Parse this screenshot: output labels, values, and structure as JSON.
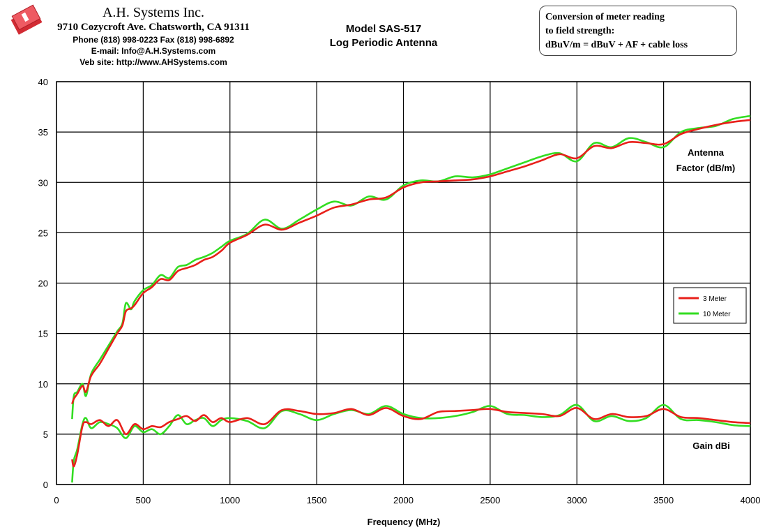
{
  "header": {
    "company_name": "A.H. Systems Inc.",
    "address": "9710 Cozycroft Ave. Chatsworth, CA 91311",
    "phone": "Phone (818) 998-0223 Fax (818) 998-6892",
    "email": "E-mail:  Info@A.H.Systems.com",
    "website": "Veb site:  http://www.AHSystems.com",
    "model_line1": "Model SAS-517",
    "model_line2": "Log Periodic Antenna"
  },
  "conversion_box": {
    "line1": "Conversion of meter reading",
    "line2": "to field strength:",
    "line3": "dBuV/m = dBuV + AF + cable loss"
  },
  "colors": {
    "three_meter": "#e8201a",
    "ten_meter": "#33dd22",
    "grid": "#000000",
    "logo": "#e8323c"
  },
  "chart_data": {
    "type": "line",
    "title": "",
    "xlabel": "Frequency (MHz)",
    "ylabel": "",
    "xlim": [
      0,
      4000
    ],
    "ylim": [
      0,
      40
    ],
    "x_ticks": [
      "0",
      "500",
      "1000",
      "1500",
      "2000",
      "2500",
      "3000",
      "3500",
      "4000"
    ],
    "y_ticks": [
      "0",
      "5",
      "10",
      "15",
      "20",
      "25",
      "30",
      "35",
      "40"
    ],
    "grid": true,
    "legend_position": "right",
    "legend": [
      "3 Meter",
      "10 Meter"
    ],
    "annotations": [
      "Antenna",
      "Factor (dB/m)",
      "Gain dBi"
    ],
    "series": [
      {
        "name": "3 Meter",
        "group": "Antenna Factor",
        "x": [
          90,
          100,
          120,
          150,
          170,
          200,
          250,
          300,
          350,
          380,
          400,
          430,
          450,
          500,
          550,
          600,
          650,
          700,
          750,
          800,
          850,
          900,
          950,
          1000,
          1100,
          1200,
          1300,
          1400,
          1500,
          1600,
          1700,
          1800,
          1900,
          2000,
          2100,
          2200,
          2300,
          2400,
          2500,
          2600,
          2700,
          2800,
          2900,
          3000,
          3100,
          3200,
          3300,
          3400,
          3500,
          3600,
          3700,
          3800,
          3900,
          4000
        ],
        "values": [
          8.0,
          8.5,
          9.0,
          9.8,
          9.2,
          10.8,
          12.0,
          13.5,
          15.0,
          15.8,
          17.2,
          17.5,
          17.8,
          19.0,
          19.6,
          20.4,
          20.3,
          21.2,
          21.5,
          21.8,
          22.3,
          22.6,
          23.2,
          24.0,
          24.8,
          25.8,
          25.3,
          26.0,
          26.7,
          27.5,
          27.8,
          28.3,
          28.5,
          29.5,
          30.0,
          30.1,
          30.2,
          30.3,
          30.6,
          31.1,
          31.6,
          32.2,
          32.8,
          32.4,
          33.6,
          33.4,
          34.0,
          33.9,
          33.8,
          34.8,
          35.3,
          35.7,
          36.0,
          36.2
        ]
      },
      {
        "name": "10 Meter",
        "group": "Antenna Factor",
        "x": [
          90,
          100,
          120,
          150,
          170,
          200,
          250,
          300,
          350,
          380,
          400,
          430,
          450,
          500,
          550,
          600,
          650,
          700,
          750,
          800,
          850,
          900,
          950,
          1000,
          1100,
          1200,
          1300,
          1400,
          1500,
          1600,
          1700,
          1800,
          1900,
          2000,
          2100,
          2200,
          2300,
          2400,
          2500,
          2600,
          2700,
          2800,
          2900,
          3000,
          3100,
          3200,
          3300,
          3400,
          3500,
          3600,
          3700,
          3800,
          3900,
          4000
        ],
        "values": [
          6.5,
          8.8,
          9.2,
          10.0,
          8.8,
          11.0,
          12.4,
          13.8,
          15.2,
          16.0,
          18.0,
          17.4,
          18.2,
          19.3,
          19.8,
          20.8,
          20.5,
          21.6,
          21.8,
          22.3,
          22.6,
          23.0,
          23.6,
          24.2,
          24.9,
          26.3,
          25.4,
          26.3,
          27.3,
          28.1,
          27.7,
          28.6,
          28.3,
          29.7,
          30.2,
          30.1,
          30.6,
          30.5,
          30.8,
          31.4,
          32.0,
          32.6,
          32.9,
          32.1,
          33.9,
          33.5,
          34.4,
          34.0,
          33.5,
          35.0,
          35.4,
          35.6,
          36.3,
          36.6
        ]
      },
      {
        "name": "3 Meter",
        "group": "Gain dBi",
        "x": [
          90,
          100,
          120,
          150,
          170,
          200,
          250,
          300,
          350,
          400,
          450,
          500,
          550,
          600,
          650,
          700,
          750,
          800,
          850,
          900,
          950,
          1000,
          1100,
          1200,
          1300,
          1400,
          1500,
          1600,
          1700,
          1800,
          1900,
          2000,
          2100,
          2200,
          2300,
          2400,
          2500,
          2600,
          2700,
          2800,
          2900,
          3000,
          3100,
          3200,
          3300,
          3400,
          3500,
          3600,
          3700,
          3800,
          3900,
          4000
        ],
        "values": [
          2.5,
          1.8,
          3.0,
          5.8,
          6.2,
          6.0,
          6.4,
          5.8,
          6.4,
          5.0,
          6.0,
          5.5,
          5.8,
          5.7,
          6.2,
          6.5,
          6.8,
          6.3,
          6.9,
          6.2,
          6.6,
          6.2,
          6.6,
          6.0,
          7.4,
          7.3,
          7.0,
          7.1,
          7.5,
          6.9,
          7.6,
          6.8,
          6.5,
          7.2,
          7.3,
          7.4,
          7.5,
          7.2,
          7.1,
          7.0,
          6.8,
          7.6,
          6.5,
          7.0,
          6.7,
          6.8,
          7.5,
          6.7,
          6.6,
          6.4,
          6.2,
          6.1
        ]
      },
      {
        "name": "10 Meter",
        "group": "Gain dBi",
        "x": [
          90,
          100,
          120,
          150,
          170,
          200,
          250,
          300,
          350,
          400,
          450,
          500,
          550,
          600,
          650,
          700,
          750,
          800,
          850,
          900,
          950,
          1000,
          1100,
          1200,
          1300,
          1400,
          1500,
          1600,
          1700,
          1800,
          1900,
          2000,
          2100,
          2200,
          2300,
          2400,
          2500,
          2600,
          2700,
          2800,
          2900,
          3000,
          3100,
          3200,
          3300,
          3400,
          3500,
          3600,
          3700,
          3800,
          3900,
          4000
        ],
        "values": [
          0.2,
          2.4,
          3.5,
          6.0,
          6.6,
          5.6,
          6.2,
          6.0,
          5.6,
          4.6,
          5.8,
          5.2,
          5.5,
          5.0,
          5.8,
          6.9,
          6.0,
          6.4,
          6.6,
          5.8,
          6.4,
          6.6,
          6.3,
          5.6,
          7.3,
          7.0,
          6.4,
          7.0,
          7.4,
          7.0,
          7.8,
          7.0,
          6.6,
          6.6,
          6.8,
          7.2,
          7.8,
          7.0,
          6.9,
          6.7,
          6.9,
          7.9,
          6.3,
          6.8,
          6.3,
          6.6,
          7.9,
          6.5,
          6.4,
          6.2,
          5.9,
          5.8
        ]
      }
    ]
  }
}
